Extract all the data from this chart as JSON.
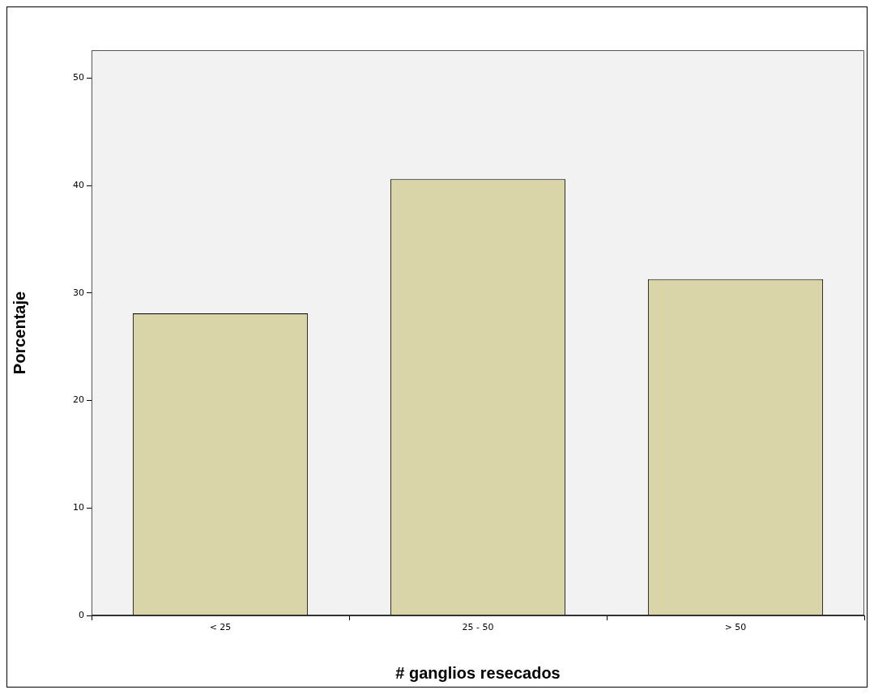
{
  "chart_data": {
    "type": "bar",
    "xlabel": "# ganglios resecados",
    "ylabel": "Porcentaje",
    "categories": [
      "< 25",
      "25 - 50",
      "> 50"
    ],
    "values": [
      28.1,
      40.6,
      31.3
    ],
    "color": "#d9d5a9",
    "ylim": [
      0,
      52.6
    ],
    "yticks": [
      0,
      10,
      20,
      30,
      40,
      50
    ],
    "grid": false,
    "legend": false
  }
}
